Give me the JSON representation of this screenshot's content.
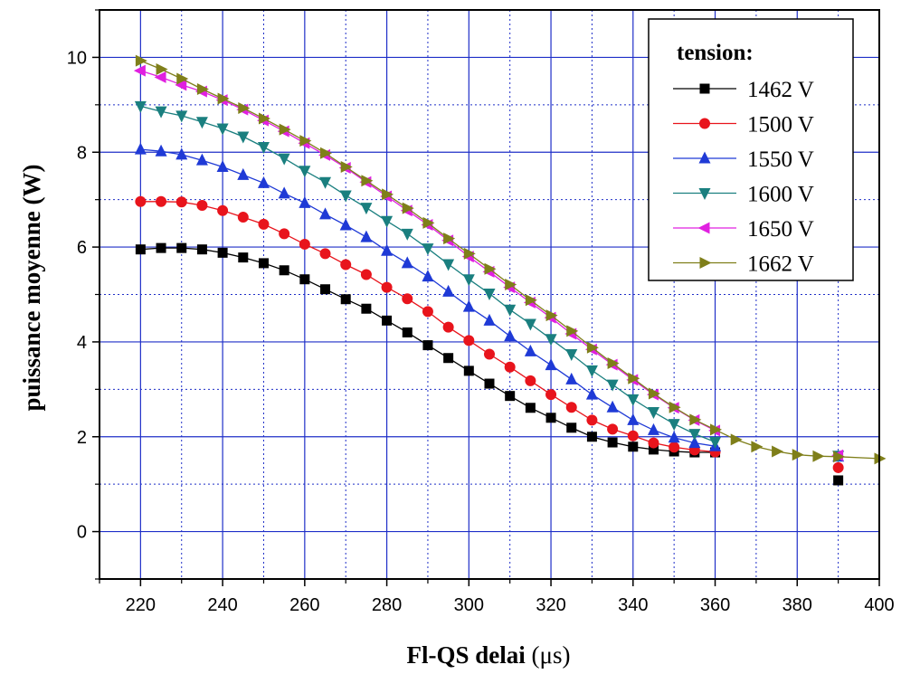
{
  "chart_data": {
    "type": "line",
    "xlabel": "Fl-QS delai",
    "xlabel_unit": "(μs)",
    "ylabel": "puissance moyenne (W)",
    "xlim": [
      210,
      400
    ],
    "ylim": [
      -1,
      11
    ],
    "xticks": [
      220,
      240,
      260,
      280,
      300,
      320,
      340,
      360,
      380,
      400
    ],
    "yticks": [
      0,
      2,
      4,
      6,
      8,
      10
    ],
    "grid": true,
    "legend": {
      "title": "tension:",
      "position": "top-right"
    },
    "series": [
      {
        "name": "1462 V",
        "color": "#000000",
        "marker": "square",
        "x": [
          220,
          225,
          230,
          235,
          240,
          245,
          250,
          255,
          260,
          265,
          270,
          275,
          280,
          285,
          290,
          295,
          300,
          305,
          310,
          315,
          320,
          325,
          330,
          335,
          340,
          345,
          350,
          355,
          360,
          390
        ],
        "y": [
          5.95,
          5.98,
          5.98,
          5.95,
          5.88,
          5.78,
          5.66,
          5.51,
          5.32,
          5.11,
          4.9,
          4.7,
          4.45,
          4.2,
          3.93,
          3.66,
          3.39,
          3.12,
          2.86,
          2.61,
          2.4,
          2.19,
          2.0,
          1.88,
          1.79,
          1.73,
          1.69,
          1.67,
          1.67,
          1.08
        ],
        "connected": 29
      },
      {
        "name": "1500 V",
        "color": "#e8141c",
        "marker": "circle",
        "x": [
          220,
          225,
          230,
          235,
          240,
          245,
          250,
          255,
          260,
          265,
          270,
          275,
          280,
          285,
          290,
          295,
          300,
          305,
          310,
          315,
          320,
          325,
          330,
          335,
          340,
          345,
          350,
          355,
          360,
          390
        ],
        "y": [
          6.96,
          6.96,
          6.95,
          6.88,
          6.77,
          6.63,
          6.48,
          6.28,
          6.06,
          5.86,
          5.63,
          5.42,
          5.15,
          4.91,
          4.64,
          4.31,
          4.03,
          3.74,
          3.47,
          3.18,
          2.89,
          2.62,
          2.35,
          2.16,
          2.02,
          1.87,
          1.78,
          1.72,
          1.68,
          1.35
        ],
        "connected": 29
      },
      {
        "name": "1550 V",
        "color": "#1f3ad6",
        "marker": "triangle-up",
        "x": [
          220,
          225,
          230,
          235,
          240,
          245,
          250,
          255,
          260,
          265,
          270,
          275,
          280,
          285,
          290,
          295,
          300,
          305,
          310,
          315,
          320,
          325,
          330,
          335,
          340,
          345,
          350,
          355,
          360,
          390
        ],
        "y": [
          8.06,
          8.02,
          7.95,
          7.83,
          7.69,
          7.52,
          7.35,
          7.13,
          6.93,
          6.69,
          6.46,
          6.21,
          5.92,
          5.66,
          5.38,
          5.06,
          4.74,
          4.45,
          4.12,
          3.8,
          3.51,
          3.21,
          2.89,
          2.62,
          2.35,
          2.14,
          1.98,
          1.87,
          1.8,
          1.58
        ],
        "connected": 29
      },
      {
        "name": "1600 V",
        "color": "#1a7f7f",
        "marker": "triangle-down",
        "x": [
          220,
          225,
          230,
          235,
          240,
          245,
          250,
          255,
          260,
          265,
          270,
          275,
          280,
          285,
          290,
          295,
          300,
          305,
          310,
          315,
          320,
          325,
          330,
          335,
          340,
          345,
          350,
          355,
          360,
          390
        ],
        "y": [
          8.97,
          8.86,
          8.77,
          8.64,
          8.5,
          8.33,
          8.11,
          7.87,
          7.61,
          7.37,
          7.09,
          6.83,
          6.55,
          6.28,
          5.97,
          5.64,
          5.32,
          5.02,
          4.68,
          4.38,
          4.06,
          3.74,
          3.4,
          3.1,
          2.79,
          2.52,
          2.27,
          2.06,
          1.89,
          1.6
        ],
        "connected": 29
      },
      {
        "name": "1650 V",
        "color": "#e020e0",
        "marker": "triangle-left",
        "x": [
          220,
          225,
          230,
          235,
          240,
          245,
          250,
          255,
          260,
          265,
          270,
          275,
          280,
          285,
          290,
          295,
          300,
          305,
          310,
          315,
          320,
          325,
          330,
          335,
          340,
          345,
          350,
          355,
          360,
          390
        ],
        "y": [
          9.72,
          9.58,
          9.42,
          9.28,
          9.1,
          8.9,
          8.67,
          8.44,
          8.19,
          7.94,
          7.67,
          7.37,
          7.07,
          6.77,
          6.47,
          6.14,
          5.8,
          5.48,
          5.15,
          4.83,
          4.51,
          4.17,
          3.84,
          3.52,
          3.2,
          2.89,
          2.61,
          2.35,
          2.13,
          1.61
        ],
        "connected": 29
      },
      {
        "name": "1662 V",
        "color": "#7f7f1a",
        "marker": "triangle-right",
        "x": [
          220,
          225,
          230,
          235,
          240,
          245,
          250,
          255,
          260,
          265,
          270,
          275,
          280,
          285,
          290,
          295,
          300,
          305,
          310,
          315,
          320,
          325,
          330,
          335,
          340,
          345,
          350,
          355,
          360,
          365,
          370,
          375,
          380,
          385,
          390,
          400
        ],
        "y": [
          9.93,
          9.75,
          9.55,
          9.33,
          9.13,
          8.93,
          8.71,
          8.48,
          8.24,
          7.98,
          7.69,
          7.4,
          7.11,
          6.82,
          6.51,
          6.18,
          5.86,
          5.54,
          5.21,
          4.88,
          4.56,
          4.23,
          3.88,
          3.55,
          3.23,
          2.91,
          2.62,
          2.36,
          2.15,
          1.94,
          1.79,
          1.69,
          1.62,
          1.59,
          1.58,
          1.54
        ],
        "connected": 36
      }
    ]
  }
}
